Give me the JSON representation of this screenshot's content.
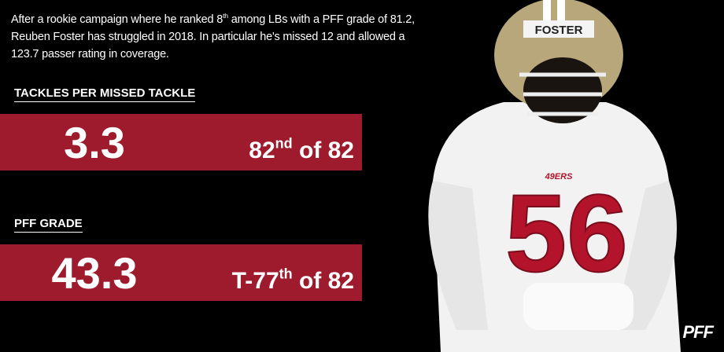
{
  "intro": {
    "before": "After a rookie campaign where he ranked 8",
    "sup": "th",
    "after": " among LBs with a PFF grade of 81.2, Reuben Foster has struggled in 2018. In particular he's missed 12 and allowed a 123.7 passer rating in coverage."
  },
  "stats": [
    {
      "label": "TACKLES PER MISSED TACKLE",
      "value": "3.3",
      "rank": "82",
      "rank_sup": "nd",
      "rank_rest": " of 82"
    },
    {
      "label": "PFF GRADE",
      "value": "43.3",
      "rank": "T-77",
      "rank_sup": "th",
      "rank_rest": " of 82"
    }
  ],
  "photo": {
    "helmet_name": "FOSTER",
    "jersey_number": "56",
    "jersey_logo": "49ERS"
  },
  "logo": "PFF"
}
